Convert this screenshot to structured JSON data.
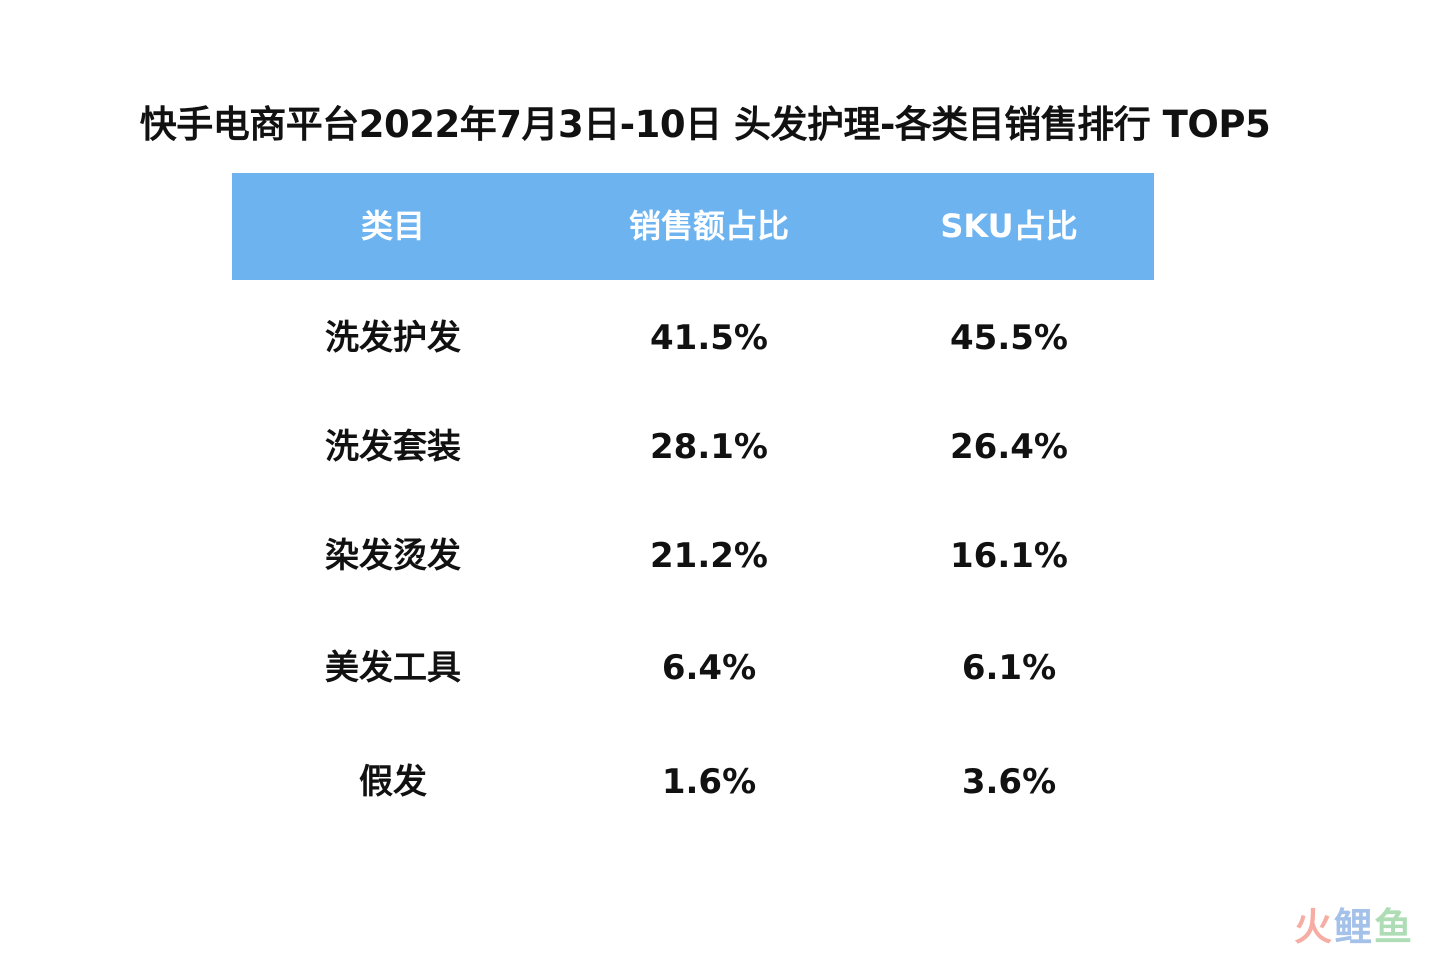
{
  "chart_data": {
    "type": "table",
    "title": "快手电商平台2022年7月3日-10日 头发护理-各类目销售排行 TOP5",
    "columns": [
      "类目",
      "销售额占比",
      "SKU占比"
    ],
    "rows": [
      [
        "洗发护发",
        "41.5%",
        "45.5%"
      ],
      [
        "洗发套装",
        "28.1%",
        "26.4%"
      ],
      [
        "染发烫发",
        "21.2%",
        "16.1%"
      ],
      [
        "美发工具",
        "6.4%",
        "6.1%"
      ],
      [
        "假发",
        "1.6%",
        "3.6%"
      ]
    ],
    "colors": {
      "header_bg": "#6cb3f0",
      "header_text": "#ffffff",
      "body_text": "#111111"
    }
  },
  "watermark": {
    "chars": [
      "火",
      "鲤",
      "鱼"
    ]
  }
}
